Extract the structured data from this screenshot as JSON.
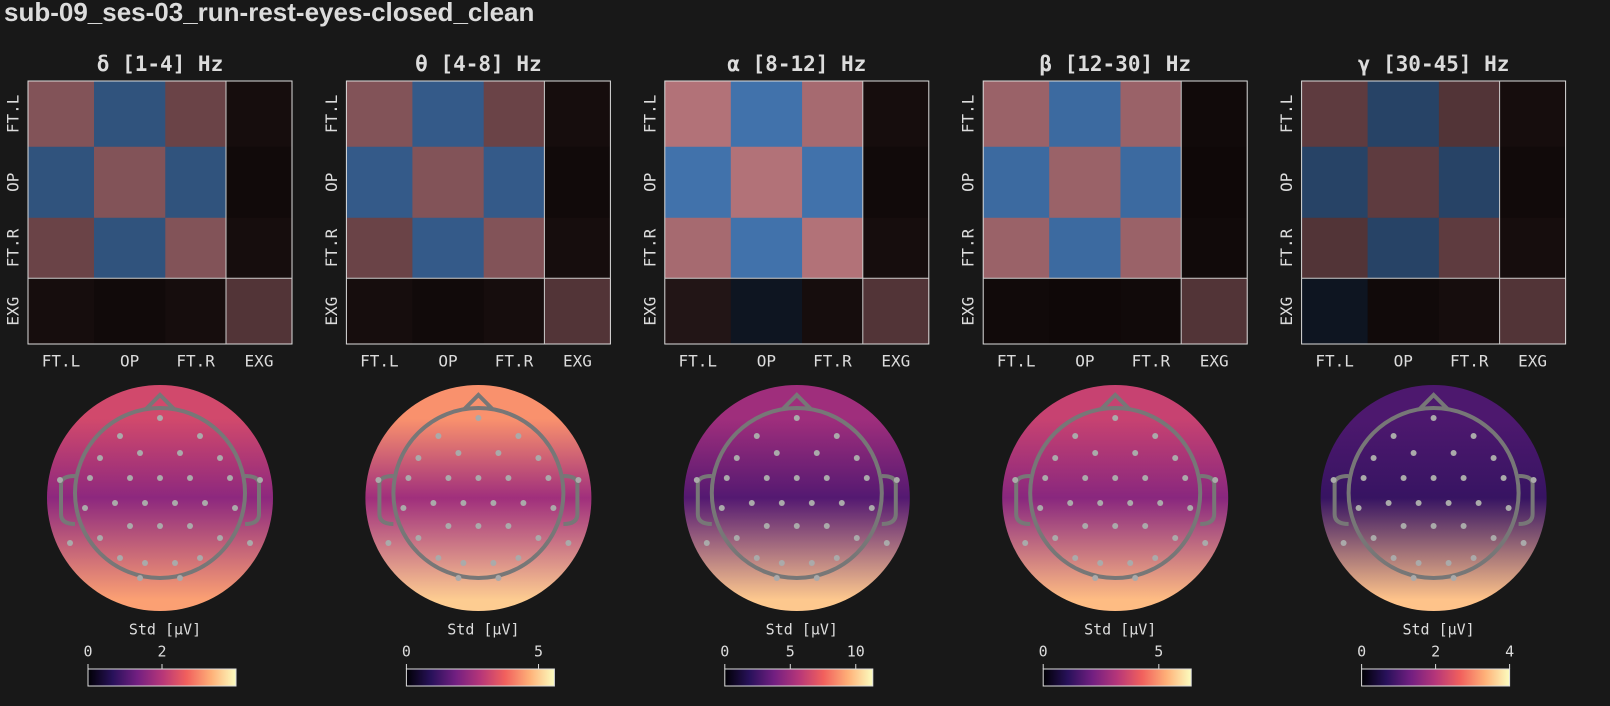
{
  "header": {
    "title": "sub-09_ses-03_run-rest-eyes-closed_clean"
  },
  "panels": [
    {
      "title": "δ [1-4] Hz",
      "xlabels": [
        "FT.L",
        "OP",
        "FT.R",
        "EXG"
      ],
      "ylabels": [
        "FT.L",
        "OP",
        "FT.R",
        "EXG"
      ],
      "blocks": [
        [
          0.5,
          -0.5,
          0.4,
          0.05
        ],
        [
          -0.5,
          0.5,
          -0.5,
          0.03
        ],
        [
          0.4,
          -0.5,
          0.5,
          0.05
        ],
        [
          0.05,
          0.03,
          0.05,
          0.3
        ]
      ],
      "topomap": {
        "front": 2.3,
        "middle": 1.6,
        "back": 3.2
      },
      "colorbar_label": "Std [µV]",
      "clim": [
        0,
        4
      ],
      "cticks": [
        0,
        2
      ]
    },
    {
      "title": "θ [4-8] Hz",
      "xlabels": [
        "FT.L",
        "OP",
        "FT.R",
        "EXG"
      ],
      "ylabels": [
        "FT.L",
        "OP",
        "FT.R",
        "EXG"
      ],
      "blocks": [
        [
          0.5,
          -0.55,
          0.4,
          0.05
        ],
        [
          -0.55,
          0.5,
          -0.55,
          0.03
        ],
        [
          0.4,
          -0.55,
          0.5,
          0.05
        ],
        [
          0.05,
          0.03,
          0.05,
          0.3
        ]
      ],
      "topomap": {
        "front": 4.3,
        "middle": 2.5,
        "back": 5
      },
      "colorbar_label": "Std [µV]",
      "clim": [
        0,
        5.6
      ],
      "cticks": [
        0,
        5
      ]
    },
    {
      "title": "α [8-12] Hz",
      "xlabels": [
        "FT.L",
        "OP",
        "FT.R",
        "EXG"
      ],
      "ylabels": [
        "FT.L",
        "OP",
        "FT.R",
        "EXG"
      ],
      "blocks": [
        [
          0.7,
          -0.7,
          0.65,
          0.05
        ],
        [
          -0.7,
          0.7,
          -0.7,
          0.03
        ],
        [
          0.65,
          -0.7,
          0.7,
          0.05
        ],
        [
          0.1,
          -0.1,
          0.05,
          0.3
        ]
      ],
      "topomap": {
        "front": 5,
        "middle": 3,
        "back": 10
      },
      "colorbar_label": "Std [µV]",
      "clim": [
        0,
        11.3
      ],
      "cticks": [
        0,
        5,
        10
      ]
    },
    {
      "title": "β [12-30] Hz",
      "xlabels": [
        "FT.L",
        "OP",
        "FT.R",
        "EXG"
      ],
      "ylabels": [
        "FT.L",
        "OP",
        "FT.R",
        "EXG"
      ],
      "blocks": [
        [
          0.6,
          -0.65,
          0.6,
          0.03
        ],
        [
          -0.65,
          0.6,
          -0.65,
          0.02
        ],
        [
          0.6,
          -0.65,
          0.6,
          0.03
        ],
        [
          0.03,
          0.02,
          0.03,
          0.3
        ]
      ],
      "topomap": {
        "front": 3.5,
        "middle": 2.5,
        "back": 5.5
      },
      "colorbar_label": "Std [µV]",
      "clim": [
        0,
        6.4
      ],
      "cticks": [
        0,
        5
      ]
    },
    {
      "title": "γ [30-45] Hz",
      "xlabels": [
        "FT.L",
        "OP",
        "FT.R",
        "EXG"
      ],
      "ylabels": [
        "FT.L",
        "OP",
        "FT.R",
        "EXG"
      ],
      "blocks": [
        [
          0.35,
          -0.4,
          0.3,
          0.05
        ],
        [
          -0.4,
          0.35,
          -0.4,
          0.03
        ],
        [
          0.3,
          -0.4,
          0.35,
          0.05
        ],
        [
          -0.1,
          0.03,
          0.05,
          0.3
        ]
      ],
      "topomap": {
        "front": 1,
        "middle": 0.8,
        "back": 3.5
      },
      "colorbar_label": "Std [µV]",
      "clim": [
        0,
        4
      ],
      "cticks": [
        0,
        2,
        4
      ]
    }
  ]
}
